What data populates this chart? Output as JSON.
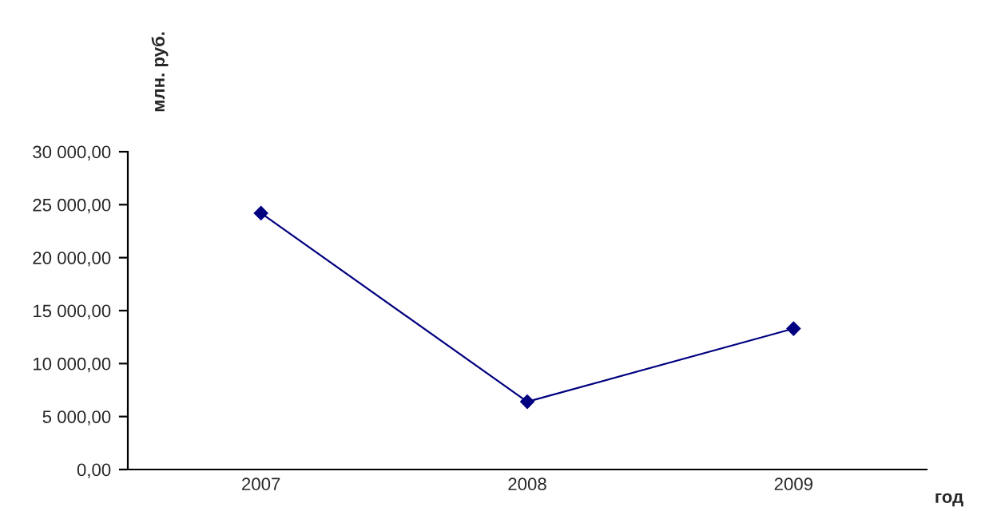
{
  "chart_data": {
    "type": "line",
    "categories": [
      "2007",
      "2008",
      "2009"
    ],
    "series": [
      {
        "color": "#000080",
        "values": [
          24200,
          6400,
          13300
        ]
      }
    ],
    "ylim": [
      0,
      30000
    ],
    "yticks": [
      {
        "value": 0,
        "label": "0,00"
      },
      {
        "value": 5000,
        "label": "5 000,00"
      },
      {
        "value": 10000,
        "label": "10 000,00"
      },
      {
        "value": 15000,
        "label": "15 000,00"
      },
      {
        "value": 20000,
        "label": "20 000,00"
      },
      {
        "value": 25000,
        "label": "25 000,00"
      },
      {
        "value": 30000,
        "label": "30 000,00"
      }
    ],
    "xlabel": "год",
    "ylabel": "млн. руб.",
    "grid": false,
    "legend": false,
    "marker": "diamond",
    "line_style": "solid"
  }
}
